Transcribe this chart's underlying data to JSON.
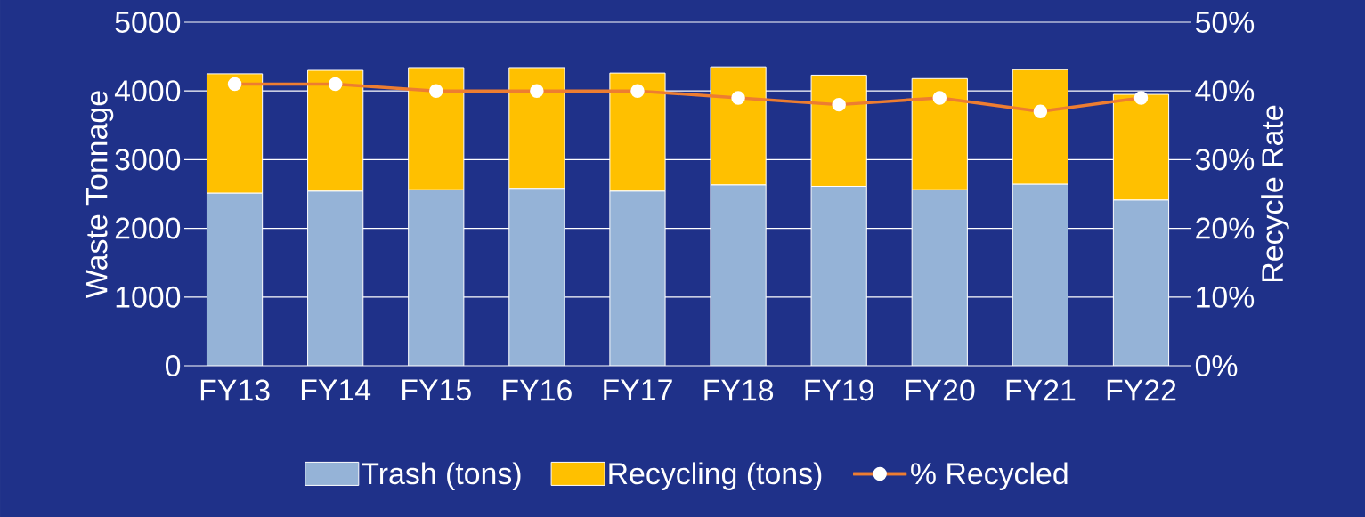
{
  "chart_data": {
    "type": "bar",
    "stacked": true,
    "ylabel": "Waste Tonnage",
    "y2label": "Recycle Rate",
    "categories": [
      "FY13",
      "FY14",
      "FY15",
      "FY16",
      "FY17",
      "FY18",
      "FY19",
      "FY20",
      "FY21",
      "FY22"
    ],
    "series": [
      {
        "name": "Trash (tons)",
        "type": "bar",
        "color": "#95b3d7",
        "values": [
          2510,
          2540,
          2560,
          2580,
          2540,
          2630,
          2610,
          2560,
          2640,
          2410
        ]
      },
      {
        "name": "Recycling (tons)",
        "type": "bar",
        "color": "#ffc000",
        "values": [
          1740,
          1760,
          1780,
          1760,
          1720,
          1720,
          1620,
          1620,
          1670,
          1540
        ]
      },
      {
        "name": "% Recycled",
        "type": "line",
        "axis": "y2",
        "color": "#ed7d31",
        "marker": "circle",
        "line_style": "solid",
        "values": [
          41,
          41,
          40,
          40,
          40,
          39,
          38,
          39,
          37,
          39
        ]
      }
    ],
    "ylim": [
      0,
      5000
    ],
    "yticks": [
      0,
      1000,
      2000,
      3000,
      4000,
      5000
    ],
    "y2lim": [
      0,
      50
    ],
    "y2ticks": [
      {
        "value": 0,
        "label": "0%"
      },
      {
        "value": 10,
        "label": "10%"
      },
      {
        "value": 20,
        "label": "20%"
      },
      {
        "value": 30,
        "label": "30%"
      },
      {
        "value": 40,
        "label": "40%"
      },
      {
        "value": 50,
        "label": "50%"
      }
    ],
    "grid": "y",
    "legend": "bottom"
  }
}
